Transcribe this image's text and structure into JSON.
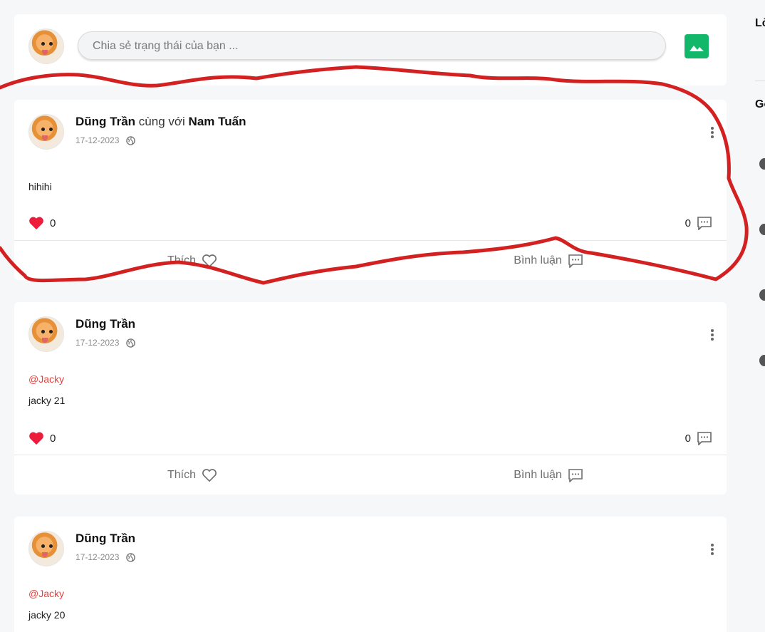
{
  "composer": {
    "placeholder": "Chia sẻ trạng thái của bạn ..."
  },
  "posts": [
    {
      "author": "Dũng Trần",
      "with_text": "cùng với",
      "tagged": "Nam Tuấn",
      "date": "17-12-2023",
      "mention": "",
      "content": "hihihi",
      "likes": "0",
      "comments": "0",
      "like_label": "Thích",
      "comment_label": "Bình luận"
    },
    {
      "author": "Dũng Trần",
      "date": "17-12-2023",
      "mention": "@Jacky",
      "content": "jacky 21",
      "likes": "0",
      "comments": "0",
      "like_label": "Thích",
      "comment_label": "Bình luận"
    },
    {
      "author": "Dũng Trần",
      "date": "17-12-2023",
      "mention": "@Jacky",
      "content": "jacky 20"
    }
  ],
  "sidebar": {
    "label_1": "Lờ",
    "label_2": "Gợ"
  },
  "colors": {
    "accent_green": "#12b76a",
    "like_red": "#e8413c",
    "annotation_red": "#d32020"
  },
  "icons": [
    "image-icon",
    "globe-icon",
    "more-vertical-icon",
    "heart-filled-icon",
    "comment-icon",
    "heart-outline-icon"
  ]
}
